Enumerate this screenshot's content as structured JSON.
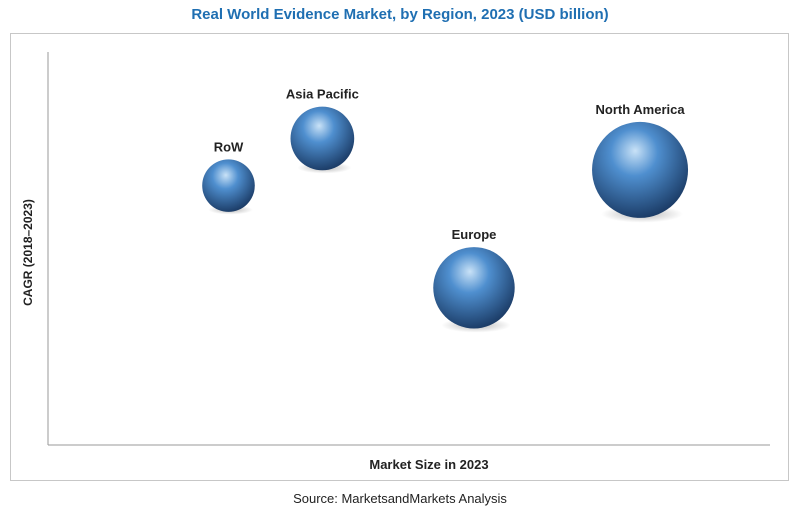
{
  "title": "Real World Evidence Market, by Region, 2023 (USD billion)",
  "source": "Source: MarketsandMarkets Analysis",
  "colors": {
    "title": "#1f6fb2",
    "bubble_light": "#c9e2f7",
    "bubble_mid": "#4f8fcf",
    "bubble_dark": "#17355e",
    "axis": "#9a9a9a"
  },
  "chart_data": {
    "type": "scatter",
    "title": "Real World Evidence Market, by Region, 2023 (USD billion)",
    "xlabel": "Market Size in 2023",
    "ylabel": "CAGR (2018–2023)",
    "axis_values_shown": false,
    "grid": false,
    "points": [
      {
        "label": "North America",
        "x": 8.2,
        "y": 7.0,
        "size": 10.0
      },
      {
        "label": "Europe",
        "x": 5.9,
        "y": 4.0,
        "size": 7.2
      },
      {
        "label": "Asia Pacific",
        "x": 3.8,
        "y": 7.8,
        "size": 4.4
      },
      {
        "label": "RoW",
        "x": 2.5,
        "y": 6.6,
        "size": 3.0
      }
    ],
    "xlim": [
      0,
      10
    ],
    "ylim": [
      0,
      10
    ]
  }
}
